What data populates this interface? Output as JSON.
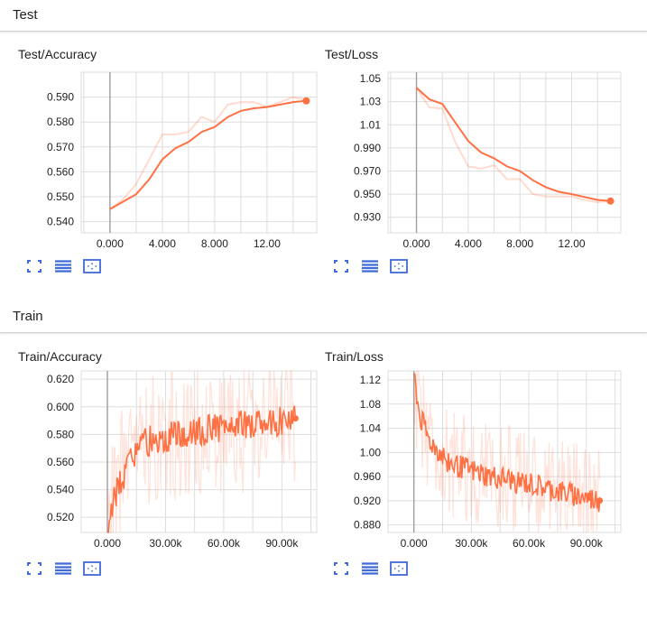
{
  "sections": [
    {
      "title": "Test",
      "charts": [
        {
          "title": "Test/Accuracy",
          "chart_data": {
            "type": "line",
            "xlim": [
              -2.2,
              15.8
            ],
            "ylim": [
              0.5355,
              0.6
            ],
            "xticks": [
              0,
              4,
              8,
              12
            ],
            "xtick_labels": [
              "0.000",
              "4.000",
              "8.000",
              "12.00"
            ],
            "yticks": [
              0.54,
              0.55,
              0.56,
              0.57,
              0.58,
              0.59
            ],
            "ytick_labels": [
              "0.540",
              "0.550",
              "0.560",
              "0.570",
              "0.580",
              "0.590"
            ],
            "series": [
              {
                "role": "raw",
                "x": [
                  0,
                  1,
                  2,
                  3,
                  4,
                  5,
                  6,
                  7,
                  8,
                  9,
                  10,
                  11,
                  12,
                  13,
                  14,
                  15
                ],
                "y": [
                  0.545,
                  0.549,
                  0.555,
                  0.565,
                  0.575,
                  0.575,
                  0.576,
                  0.582,
                  0.58,
                  0.587,
                  0.588,
                  0.588,
                  0.586,
                  0.588,
                  0.59,
                  0.589
                ]
              },
              {
                "role": "smoothed",
                "x": [
                  0,
                  1,
                  2,
                  3,
                  4,
                  5,
                  6,
                  7,
                  8,
                  9,
                  10,
                  11,
                  12,
                  13,
                  14,
                  15
                ],
                "y": [
                  0.545,
                  0.548,
                  0.551,
                  0.557,
                  0.565,
                  0.5695,
                  0.572,
                  0.576,
                  0.578,
                  0.582,
                  0.5845,
                  0.5855,
                  0.586,
                  0.587,
                  0.588,
                  0.5885
                ]
              }
            ],
            "grid": true
          }
        },
        {
          "title": "Test/Loss",
          "chart_data": {
            "type": "line",
            "xlim": [
              -2.2,
              15.8
            ],
            "ylim": [
              0.9165,
              1.0555
            ],
            "xticks": [
              0,
              4,
              8,
              12
            ],
            "xtick_labels": [
              "0.000",
              "4.000",
              "8.000",
              "12.00"
            ],
            "yticks": [
              0.93,
              0.95,
              0.97,
              0.99,
              1.01,
              1.03,
              1.05
            ],
            "ytick_labels": [
              "0.930",
              "0.950",
              "0.970",
              "0.990",
              "1.01",
              "1.03",
              "1.05"
            ],
            "series": [
              {
                "role": "raw",
                "x": [
                  0,
                  1,
                  2,
                  3,
                  4,
                  5,
                  6,
                  7,
                  8,
                  9,
                  10,
                  11,
                  12,
                  13,
                  14,
                  15
                ],
                "y": [
                  1.042,
                  1.025,
                  1.024,
                  0.995,
                  0.974,
                  0.972,
                  0.975,
                  0.963,
                  0.963,
                  0.95,
                  0.948,
                  0.948,
                  0.948,
                  0.945,
                  0.943,
                  0.944
                ]
              },
              {
                "role": "smoothed",
                "x": [
                  0,
                  1,
                  2,
                  3,
                  4,
                  5,
                  6,
                  7,
                  8,
                  9,
                  10,
                  11,
                  12,
                  13,
                  14,
                  15
                ],
                "y": [
                  1.042,
                  1.032,
                  1.028,
                  1.012,
                  0.996,
                  0.986,
                  0.981,
                  0.974,
                  0.97,
                  0.962,
                  0.956,
                  0.952,
                  0.95,
                  0.9475,
                  0.945,
                  0.944
                ]
              }
            ],
            "grid": true
          }
        }
      ]
    },
    {
      "title": "Train",
      "charts": [
        {
          "title": "Train/Accuracy",
          "chart_data": {
            "type": "line",
            "xlim": [
              -13500,
              108000
            ],
            "ylim": [
              0.509,
              0.626
            ],
            "xticks": [
              0,
              30000,
              60000,
              90000
            ],
            "xtick_labels": [
              "0.000",
              "30.00k",
              "60.00k",
              "90.00k"
            ],
            "yticks": [
              0.52,
              0.54,
              0.56,
              0.58,
              0.6,
              0.62
            ],
            "ytick_labels": [
              "0.520",
              "0.540",
              "0.560",
              "0.580",
              "0.600",
              "0.620"
            ],
            "series": [
              {
                "role": "trend",
                "x": [
                  0,
                  5000,
                  10000,
                  15000,
                  20000,
                  30000,
                  40000,
                  50000,
                  60000,
                  70000,
                  80000,
                  90000,
                  97000
                ],
                "y": [
                  0.511,
                  0.54,
                  0.555,
                  0.566,
                  0.575,
                  0.578,
                  0.581,
                  0.583,
                  0.585,
                  0.587,
                  0.589,
                  0.59,
                  0.592
                ],
                "noise": 0.011,
                "raw_noise": 0.05
              }
            ],
            "grid": true
          }
        },
        {
          "title": "Train/Loss",
          "chart_data": {
            "type": "line",
            "xlim": [
              -13500,
              108000
            ],
            "ylim": [
              0.8675,
              1.135
            ],
            "xticks": [
              0,
              30000,
              60000,
              90000
            ],
            "xtick_labels": [
              "0.000",
              "30.00k",
              "60.00k",
              "90.00k"
            ],
            "yticks": [
              0.88,
              0.92,
              0.96,
              1.0,
              1.04,
              1.08,
              1.12
            ],
            "ytick_labels": [
              "0.880",
              "0.920",
              "0.960",
              "1.00",
              "1.04",
              "1.08",
              "1.12"
            ],
            "series": [
              {
                "role": "trend",
                "x": [
                  0,
                  3000,
                  8000,
                  15000,
                  20000,
                  30000,
                  40000,
                  50000,
                  60000,
                  70000,
                  80000,
                  90000,
                  97000
                ],
                "y": [
                  1.13,
                  1.06,
                  1.02,
                  0.995,
                  0.98,
                  0.97,
                  0.96,
                  0.955,
                  0.948,
                  0.94,
                  0.932,
                  0.925,
                  0.92
                ],
                "noise": 0.02,
                "raw_noise": 0.09
              }
            ],
            "grid": true
          }
        }
      ]
    }
  ],
  "colors": {
    "line": "#ff7043",
    "line_raw": "#ff7043",
    "grid": "#dddddd",
    "axis": "#9e9e9e",
    "tick_text": "#212121",
    "icon": "#3f6ad8"
  },
  "toolbar_icons": [
    "fullscreen-icon",
    "data-table-icon",
    "fit-domain-icon"
  ]
}
